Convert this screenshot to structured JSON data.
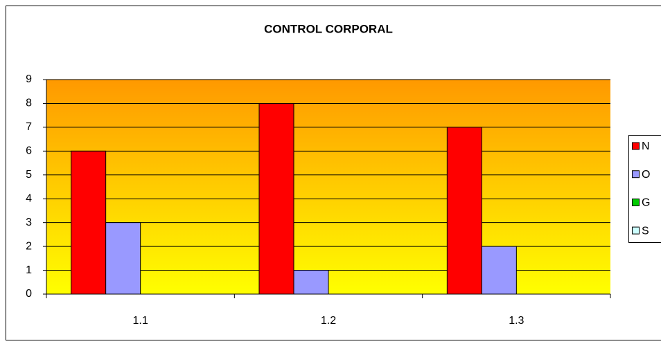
{
  "chart_data": {
    "type": "bar",
    "title": "CONTROL CORPORAL",
    "categories": [
      "1.1",
      "1.2",
      "1.3"
    ],
    "series": [
      {
        "name": "N",
        "color": "#ff0000",
        "values": [
          6,
          8,
          7
        ]
      },
      {
        "name": "O",
        "color": "#9999ff",
        "values": [
          3,
          1,
          2
        ]
      },
      {
        "name": "G",
        "color": "#00cc00",
        "values": [
          0,
          0,
          0
        ]
      },
      {
        "name": "S",
        "color": "#ccffff",
        "values": [
          0,
          0,
          0
        ]
      }
    ],
    "ylim": [
      0,
      9
    ],
    "yticks": [
      0,
      1,
      2,
      3,
      4,
      5,
      6,
      7,
      8,
      9
    ],
    "grid": true,
    "legend": "right"
  }
}
